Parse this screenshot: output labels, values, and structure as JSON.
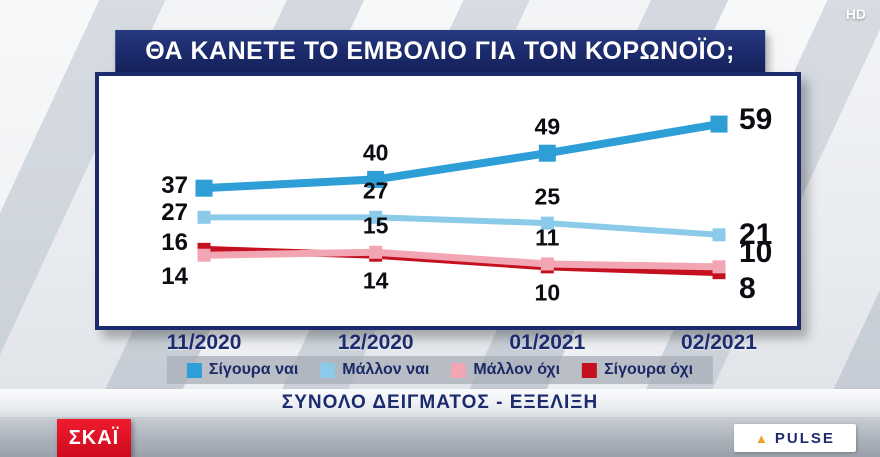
{
  "header": {
    "hd_badge": "HD"
  },
  "title": "ΘΑ ΚΑΝΕΤΕ ΤΟ ΕΜΒΟΛΙΟ ΓΙΑ ΤΟΝ ΚΟΡΩΝΟΪΟ;",
  "chart_data": {
    "type": "line",
    "categories": [
      "11/2020",
      "12/2020",
      "01/2021",
      "02/2021"
    ],
    "series": [
      {
        "name": "Σίγουρα ναι",
        "color": "#2D9ED6",
        "values": [
          37,
          40,
          49,
          59
        ]
      },
      {
        "name": "Μάλλον ναι",
        "color": "#8CCAEA",
        "values": [
          27,
          27,
          25,
          21
        ]
      },
      {
        "name": "Μάλλον όχι",
        "color": "#F2A5B2",
        "values": [
          14,
          15,
          11,
          10
        ]
      },
      {
        "name": "Σίγουρα όχι",
        "color": "#C5101F",
        "values": [
          16,
          14,
          10,
          8
        ]
      }
    ],
    "ylim": [
      0,
      70
    ],
    "grid": false,
    "legend_position": "bottom",
    "value_labels": true,
    "accent_color": "#1C2B6E"
  },
  "footer": {
    "subtitle": "ΣΥΝΟΛΟ ΔΕΙΓΜΑΤΟΣ - ΕΞΕΛΙΞΗ",
    "channel": "ΣΚΑΪ",
    "agency": "PULSE"
  }
}
